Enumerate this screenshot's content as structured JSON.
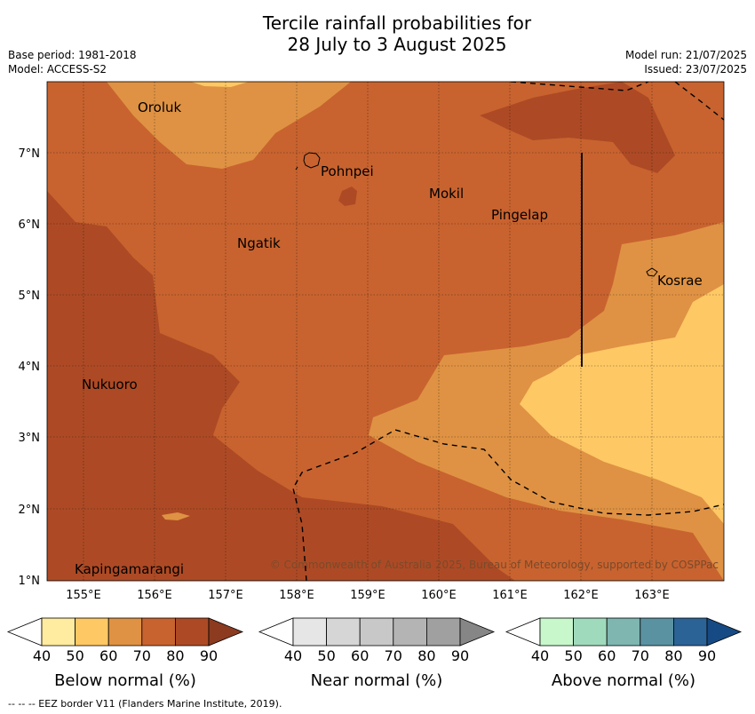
{
  "title": {
    "line1": "Tercile rainfall probabilities for",
    "line2": "28 July to 3 August 2025"
  },
  "meta_left": {
    "base_period": "Base period: 1981-2018",
    "model": "Model: ACCESS-S2"
  },
  "meta_right": {
    "model_run": "Model run: 21/07/2025",
    "issued": "Issued: 23/07/2025"
  },
  "places": [
    "Oroluk",
    "Pohnpei",
    "Mokil",
    "Pingelap",
    "Ngatik",
    "Kosrae",
    "Nukuoro",
    "Kapingamarangi"
  ],
  "lat_ticks": [
    "7°N",
    "6°N",
    "5°N",
    "4°N",
    "3°N",
    "2°N",
    "1°N"
  ],
  "lon_ticks": [
    "155°E",
    "156°E",
    "157°E",
    "158°E",
    "159°E",
    "160°E",
    "161°E",
    "162°E",
    "163°E"
  ],
  "credit": "© Commonwealth of Australia 2025, Bureau of Meteorology, supported by COSPPac",
  "colorbars": [
    {
      "title": "Below normal (%)",
      "ticks": [
        "40",
        "50",
        "60",
        "70",
        "80",
        "90"
      ],
      "colors": [
        "#ffffff",
        "#ffeca0",
        "#fec864",
        "#df9243",
        "#c8632f",
        "#ad4a25",
        "#8c3a20"
      ]
    },
    {
      "title": "Near normal (%)",
      "ticks": [
        "40",
        "50",
        "60",
        "70",
        "80",
        "90"
      ],
      "colors": [
        "#ffffff",
        "#e6e6e6",
        "#d6d6d6",
        "#c8c8c8",
        "#b4b4b4",
        "#a0a0a0",
        "#868686"
      ]
    },
    {
      "title": "Above normal (%)",
      "ticks": [
        "40",
        "50",
        "60",
        "70",
        "80",
        "90"
      ],
      "colors": [
        "#ffffff",
        "#c8f7cc",
        "#a0dabc",
        "#7fb6b0",
        "#5a92a2",
        "#2c6396",
        "#164a84"
      ]
    }
  ],
  "footer": "--  --  -- EEZ border V11 (Flanders Marine Institute, 2019)."
}
